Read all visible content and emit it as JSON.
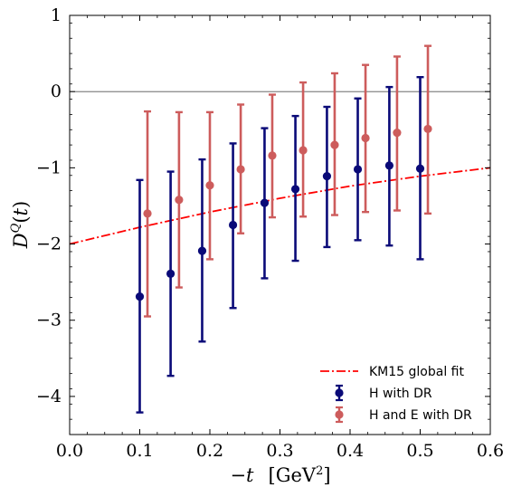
{
  "chart_data": {
    "type": "scatter",
    "title": "",
    "xlabel": "−t   [GeV²]",
    "ylabel": "D^Q(t)",
    "xlim": [
      0.0,
      0.6
    ],
    "ylim": [
      -4.5,
      1.0
    ],
    "xticks": [
      "0.0",
      "0.1",
      "0.2",
      "0.3",
      "0.4",
      "0.5",
      "0.6"
    ],
    "yticks": [
      "1",
      "0",
      "−1",
      "−2",
      "−3",
      "−4"
    ],
    "xtick_values": [
      0.0,
      0.1,
      0.2,
      0.3,
      0.4,
      0.5,
      0.6
    ],
    "ytick_values": [
      1,
      0,
      -1,
      -2,
      -3,
      -4
    ],
    "zero_line": true,
    "legend_position": "bottom-right",
    "series": [
      {
        "name": "KM15 global fit",
        "kind": "line",
        "color": "#ff0000",
        "dash": "dash-dot",
        "x": [
          0.0,
          0.1,
          0.2,
          0.3,
          0.4,
          0.5,
          0.6
        ],
        "y": [
          -2.0,
          -1.78,
          -1.58,
          -1.4,
          -1.24,
          -1.11,
          -1.0
        ]
      },
      {
        "name": "H with DR",
        "kind": "errorbar",
        "color": "#0a0a78",
        "x": [
          0.1,
          0.144,
          0.189,
          0.233,
          0.278,
          0.322,
          0.367,
          0.411,
          0.456,
          0.5
        ],
        "y": [
          -2.69,
          -2.39,
          -2.09,
          -1.75,
          -1.46,
          -1.28,
          -1.11,
          -1.02,
          -0.97,
          -1.01
        ],
        "y_low": [
          -4.21,
          -3.73,
          -3.28,
          -2.84,
          -2.45,
          -2.22,
          -2.04,
          -1.95,
          -2.02,
          -2.2
        ],
        "y_high": [
          -1.16,
          -1.05,
          -0.89,
          -0.68,
          -0.48,
          -0.32,
          -0.2,
          -0.09,
          0.06,
          0.19
        ]
      },
      {
        "name": "H and E with DR",
        "kind": "errorbar",
        "color": "#cd5c5c",
        "x": [
          0.111,
          0.156,
          0.2,
          0.244,
          0.289,
          0.333,
          0.378,
          0.422,
          0.467,
          0.511
        ],
        "y": [
          -1.6,
          -1.42,
          -1.23,
          -1.02,
          -0.84,
          -0.77,
          -0.7,
          -0.61,
          -0.54,
          -0.49
        ],
        "y_low": [
          -2.95,
          -2.57,
          -2.2,
          -1.86,
          -1.65,
          -1.64,
          -1.62,
          -1.58,
          -1.56,
          -1.6
        ],
        "y_high": [
          -0.26,
          -0.27,
          -0.27,
          -0.17,
          -0.04,
          0.12,
          0.24,
          0.35,
          0.46,
          0.6
        ]
      }
    ]
  }
}
